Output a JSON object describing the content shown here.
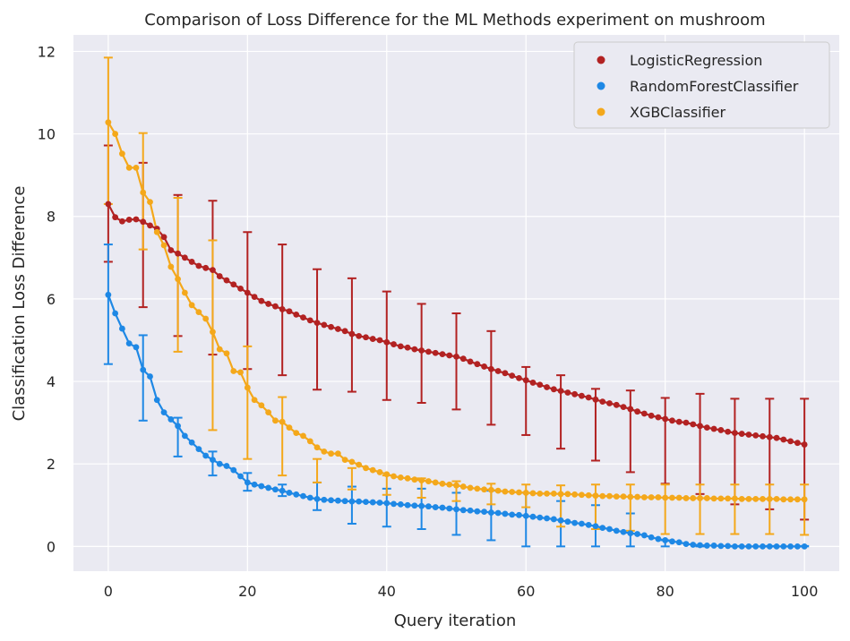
{
  "chart_data": {
    "type": "line",
    "title": "Comparison of Loss Difference for the ML Methods experiment on mushroom",
    "xlabel": "Query iteration",
    "ylabel": "Classification Loss Difference",
    "xlim": [
      -5,
      105
    ],
    "ylim": [
      -0.6,
      12.4
    ],
    "xticks": [
      0,
      20,
      40,
      60,
      80,
      100
    ],
    "yticks": [
      0,
      2,
      4,
      6,
      8,
      10,
      12
    ],
    "grid": true,
    "legend": "top-right",
    "background": "#eaeaf2",
    "series": [
      {
        "name": "LogisticRegression",
        "color": "#b22222",
        "y": [
          8.3,
          7.98,
          7.88,
          7.92,
          7.93,
          7.87,
          7.78,
          7.7,
          7.5,
          7.18,
          7.1,
          7.0,
          6.9,
          6.8,
          6.75,
          6.7,
          6.55,
          6.45,
          6.35,
          6.25,
          6.15,
          6.05,
          5.95,
          5.88,
          5.82,
          5.75,
          5.7,
          5.62,
          5.55,
          5.48,
          5.42,
          5.37,
          5.32,
          5.27,
          5.22,
          5.15,
          5.1,
          5.07,
          5.03,
          5.0,
          4.95,
          4.9,
          4.85,
          4.82,
          4.78,
          4.75,
          4.72,
          4.69,
          4.66,
          4.63,
          4.6,
          4.55,
          4.48,
          4.42,
          4.36,
          4.3,
          4.25,
          4.2,
          4.14,
          4.08,
          4.03,
          3.97,
          3.92,
          3.86,
          3.81,
          3.77,
          3.73,
          3.69,
          3.65,
          3.61,
          3.56,
          3.51,
          3.47,
          3.43,
          3.38,
          3.33,
          3.27,
          3.22,
          3.17,
          3.13,
          3.09,
          3.05,
          3.02,
          3.0,
          2.96,
          2.92,
          2.88,
          2.85,
          2.82,
          2.78,
          2.75,
          2.73,
          2.71,
          2.69,
          2.67,
          2.65,
          2.63,
          2.59,
          2.55,
          2.51,
          2.47
        ],
        "errorbars": [
          {
            "x": 0,
            "low": 6.9,
            "high": 9.72
          },
          {
            "x": 5,
            "low": 5.8,
            "high": 9.3
          },
          {
            "x": 10,
            "low": 5.1,
            "high": 8.52
          },
          {
            "x": 15,
            "low": 4.65,
            "high": 8.38
          },
          {
            "x": 20,
            "low": 4.3,
            "high": 7.62
          },
          {
            "x": 25,
            "low": 4.15,
            "high": 7.32
          },
          {
            "x": 30,
            "low": 3.8,
            "high": 6.72
          },
          {
            "x": 35,
            "low": 3.75,
            "high": 6.5
          },
          {
            "x": 40,
            "low": 3.55,
            "high": 6.18
          },
          {
            "x": 45,
            "low": 3.48,
            "high": 5.88
          },
          {
            "x": 50,
            "low": 3.32,
            "high": 5.65
          },
          {
            "x": 55,
            "low": 2.95,
            "high": 5.22
          },
          {
            "x": 60,
            "low": 2.7,
            "high": 4.35
          },
          {
            "x": 65,
            "low": 2.37,
            "high": 4.15
          },
          {
            "x": 70,
            "low": 2.08,
            "high": 3.82
          },
          {
            "x": 75,
            "low": 1.8,
            "high": 3.78
          },
          {
            "x": 80,
            "low": 1.52,
            "high": 3.6
          },
          {
            "x": 85,
            "low": 1.27,
            "high": 3.7
          },
          {
            "x": 90,
            "low": 1.02,
            "high": 3.58
          },
          {
            "x": 95,
            "low": 0.9,
            "high": 3.58
          },
          {
            "x": 100,
            "low": 0.65,
            "high": 3.58
          }
        ]
      },
      {
        "name": "RandomForestClassifier",
        "color": "#1e88e5",
        "y": [
          6.1,
          5.65,
          5.28,
          4.92,
          4.83,
          4.28,
          4.12,
          3.55,
          3.25,
          3.08,
          2.92,
          2.68,
          2.52,
          2.36,
          2.2,
          2.1,
          2.0,
          1.95,
          1.85,
          1.7,
          1.55,
          1.5,
          1.46,
          1.42,
          1.38,
          1.35,
          1.3,
          1.26,
          1.22,
          1.18,
          1.15,
          1.13,
          1.12,
          1.11,
          1.1,
          1.09,
          1.09,
          1.08,
          1.07,
          1.06,
          1.05,
          1.03,
          1.02,
          1.0,
          0.99,
          0.98,
          0.97,
          0.95,
          0.94,
          0.92,
          0.9,
          0.88,
          0.87,
          0.85,
          0.84,
          0.82,
          0.81,
          0.79,
          0.77,
          0.76,
          0.74,
          0.72,
          0.7,
          0.68,
          0.66,
          0.63,
          0.6,
          0.57,
          0.55,
          0.52,
          0.49,
          0.45,
          0.42,
          0.38,
          0.35,
          0.32,
          0.3,
          0.27,
          0.22,
          0.18,
          0.15,
          0.12,
          0.1,
          0.06,
          0.04,
          0.03,
          0.02,
          0.02,
          0.01,
          0.01,
          0.0,
          0.0,
          0.0,
          0.0,
          0.0,
          0.0,
          0.0,
          0.0,
          0.0,
          0.0,
          0.0
        ],
        "errorbars": [
          {
            "x": 0,
            "low": 4.42,
            "high": 7.32
          },
          {
            "x": 5,
            "low": 3.05,
            "high": 5.12
          },
          {
            "x": 10,
            "low": 2.18,
            "high": 3.12
          },
          {
            "x": 15,
            "low": 1.72,
            "high": 2.3
          },
          {
            "x": 20,
            "low": 1.35,
            "high": 1.78
          },
          {
            "x": 25,
            "low": 1.22,
            "high": 1.5
          },
          {
            "x": 30,
            "low": 0.88,
            "high": 1.55
          },
          {
            "x": 35,
            "low": 0.55,
            "high": 1.45
          },
          {
            "x": 40,
            "low": 0.48,
            "high": 1.4
          },
          {
            "x": 45,
            "low": 0.42,
            "high": 1.4
          },
          {
            "x": 50,
            "low": 0.28,
            "high": 1.3
          },
          {
            "x": 55,
            "low": 0.15,
            "high": 1.35
          },
          {
            "x": 60,
            "low": 0.0,
            "high": 1.3
          },
          {
            "x": 65,
            "low": 0.0,
            "high": 1.1
          },
          {
            "x": 70,
            "low": 0.0,
            "high": 1.0
          },
          {
            "x": 75,
            "low": 0.0,
            "high": 0.8
          },
          {
            "x": 80,
            "low": 0.0,
            "high": 0.15
          },
          {
            "x": 85,
            "low": 0.0,
            "high": 0.02
          },
          {
            "x": 90,
            "low": 0.0,
            "high": 0.01
          },
          {
            "x": 95,
            "low": 0.0,
            "high": 0.01
          },
          {
            "x": 100,
            "low": 0.0,
            "high": 0.01
          }
        ]
      },
      {
        "name": "XGBClassifier",
        "color": "#f4a81b",
        "y": [
          10.28,
          10.0,
          9.52,
          9.18,
          9.18,
          8.58,
          8.35,
          7.62,
          7.3,
          6.78,
          6.48,
          6.15,
          5.85,
          5.68,
          5.52,
          5.2,
          4.78,
          4.68,
          4.25,
          4.22,
          3.85,
          3.55,
          3.42,
          3.25,
          3.05,
          3.02,
          2.88,
          2.75,
          2.68,
          2.55,
          2.4,
          2.3,
          2.25,
          2.25,
          2.1,
          2.05,
          1.98,
          1.9,
          1.85,
          1.8,
          1.75,
          1.7,
          1.67,
          1.65,
          1.62,
          1.6,
          1.58,
          1.55,
          1.52,
          1.5,
          1.48,
          1.45,
          1.42,
          1.4,
          1.38,
          1.37,
          1.35,
          1.33,
          1.32,
          1.31,
          1.3,
          1.29,
          1.28,
          1.28,
          1.28,
          1.27,
          1.27,
          1.26,
          1.25,
          1.24,
          1.23,
          1.22,
          1.22,
          1.21,
          1.21,
          1.2,
          1.2,
          1.19,
          1.19,
          1.19,
          1.18,
          1.18,
          1.18,
          1.17,
          1.17,
          1.17,
          1.17,
          1.16,
          1.16,
          1.16,
          1.16,
          1.15,
          1.15,
          1.15,
          1.15,
          1.15,
          1.15,
          1.14,
          1.14,
          1.14,
          1.14
        ],
        "errorbars": [
          {
            "x": 0,
            "low": 8.3,
            "high": 11.85
          },
          {
            "x": 5,
            "low": 7.2,
            "high": 10.02
          },
          {
            "x": 10,
            "low": 4.72,
            "high": 8.45
          },
          {
            "x": 15,
            "low": 2.82,
            "high": 7.42
          },
          {
            "x": 20,
            "low": 2.12,
            "high": 4.85
          },
          {
            "x": 25,
            "low": 1.72,
            "high": 3.62
          },
          {
            "x": 30,
            "low": 1.55,
            "high": 2.12
          },
          {
            "x": 35,
            "low": 1.38,
            "high": 1.9
          },
          {
            "x": 40,
            "low": 1.25,
            "high": 1.72
          },
          {
            "x": 45,
            "low": 1.18,
            "high": 1.65
          },
          {
            "x": 50,
            "low": 1.1,
            "high": 1.58
          },
          {
            "x": 55,
            "low": 1.02,
            "high": 1.52
          },
          {
            "x": 60,
            "low": 0.95,
            "high": 1.5
          },
          {
            "x": 65,
            "low": 0.48,
            "high": 1.48
          },
          {
            "x": 70,
            "low": 0.42,
            "high": 1.5
          },
          {
            "x": 75,
            "low": 0.38,
            "high": 1.5
          },
          {
            "x": 80,
            "low": 0.3,
            "high": 1.5
          },
          {
            "x": 85,
            "low": 0.3,
            "high": 1.5
          },
          {
            "x": 90,
            "low": 0.3,
            "high": 1.5
          },
          {
            "x": 95,
            "low": 0.3,
            "high": 1.5
          },
          {
            "x": 100,
            "low": 0.28,
            "high": 1.5
          }
        ]
      }
    ]
  }
}
